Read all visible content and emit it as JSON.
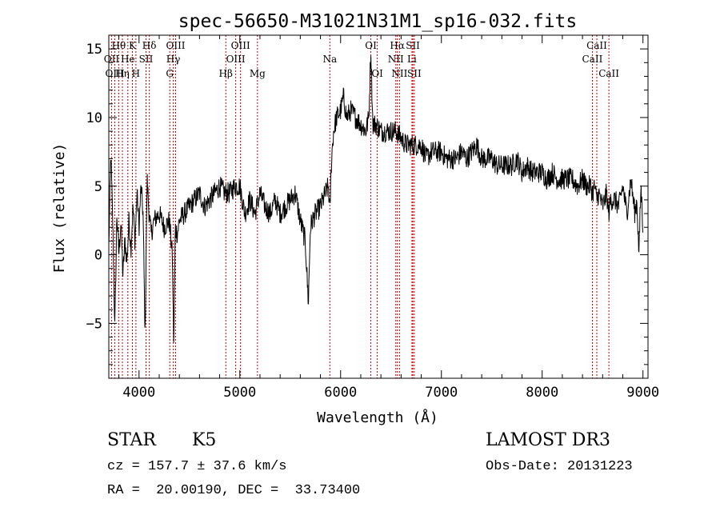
{
  "chart_data": {
    "type": "line",
    "title": "spec-56650-M31021N31M1_sp16-032.fits",
    "xlabel": "Wavelength (Å)",
    "ylabel": "Flux (relative)",
    "xlim": [
      3700,
      9050
    ],
    "ylim": [
      -9,
      16
    ],
    "x_ticks": [
      4000,
      5000,
      6000,
      7000,
      8000,
      9000
    ],
    "y_ticks": [
      -5,
      0,
      5,
      10,
      15
    ],
    "grid": false,
    "line_color": "#000000",
    "marker_color": "#cc0000",
    "spectral_lines": [
      {
        "name": "Hθ",
        "wavelength": 3798,
        "row": 0
      },
      {
        "name": "OII",
        "wavelength": 3727,
        "row": 1
      },
      {
        "name": "OIII",
        "wavelength": 3760,
        "row": 2
      },
      {
        "name": "He",
        "wavelength": 3889,
        "row": 1
      },
      {
        "name": "Hη",
        "wavelength": 3835,
        "row": 2
      },
      {
        "name": "K",
        "wavelength": 3934,
        "row": 0
      },
      {
        "name": "SII",
        "wavelength": 4069,
        "row": 1
      },
      {
        "name": "H",
        "wavelength": 3969,
        "row": 2
      },
      {
        "name": "Hδ",
        "wavelength": 4102,
        "row": 0
      },
      {
        "name": "OIII",
        "wavelength": 4363,
        "row": 0
      },
      {
        "name": "Hγ",
        "wavelength": 4340,
        "row": 1
      },
      {
        "name": "G",
        "wavelength": 4305,
        "row": 2
      },
      {
        "name": "OIII",
        "wavelength": 5007,
        "row": 0
      },
      {
        "name": "OIII",
        "wavelength": 4959,
        "row": 1
      },
      {
        "name": "Hβ",
        "wavelength": 4861,
        "row": 2
      },
      {
        "name": "Mg",
        "wavelength": 5175,
        "row": 2
      },
      {
        "name": "Na",
        "wavelength": 5893,
        "row": 1
      },
      {
        "name": "OI",
        "wavelength": 6300,
        "row": 0
      },
      {
        "name": "OI",
        "wavelength": 6364,
        "row": 2
      },
      {
        "name": "Hα",
        "wavelength": 6563,
        "row": 0
      },
      {
        "name": "SII",
        "wavelength": 6717,
        "row": 0
      },
      {
        "name": "NII",
        "wavelength": 6548,
        "row": 1
      },
      {
        "name": "Li",
        "wavelength": 6708,
        "row": 1
      },
      {
        "name": "NII",
        "wavelength": 6584,
        "row": 2
      },
      {
        "name": "SII",
        "wavelength": 6731,
        "row": 2
      },
      {
        "name": "CaII",
        "wavelength": 8542,
        "row": 0
      },
      {
        "name": "CaII",
        "wavelength": 8498,
        "row": 1
      },
      {
        "name": "CaII",
        "wavelength": 8662,
        "row": 2
      }
    ],
    "series": [
      {
        "name": "flux",
        "x": [
          3700,
          3720,
          3740,
          3760,
          3780,
          3800,
          3820,
          3840,
          3860,
          3880,
          3900,
          3920,
          3940,
          3960,
          3980,
          4000,
          4020,
          4040,
          4060,
          4080,
          4100,
          4120,
          4150,
          4200,
          4250,
          4300,
          4330,
          4345,
          4360,
          4380,
          4400,
          4450,
          4500,
          4550,
          4600,
          4650,
          4700,
          4750,
          4800,
          4850,
          4900,
          4950,
          5000,
          5050,
          5100,
          5150,
          5200,
          5250,
          5300,
          5350,
          5400,
          5450,
          5500,
          5550,
          5600,
          5650,
          5680,
          5700,
          5720,
          5750,
          5800,
          5850,
          5880,
          5893,
          5910,
          5930,
          5960,
          6000,
          6030,
          6060,
          6100,
          6150,
          6200,
          6250,
          6280,
          6300,
          6320,
          6350,
          6400,
          6450,
          6500,
          6550,
          6600,
          6650,
          6700,
          6750,
          6800,
          6850,
          6900,
          6950,
          7000,
          7050,
          7100,
          7150,
          7200,
          7250,
          7300,
          7350,
          7400,
          7450,
          7500,
          7550,
          7600,
          7650,
          7700,
          7750,
          7800,
          7850,
          7900,
          7950,
          8000,
          8050,
          8100,
          8150,
          8200,
          8250,
          8300,
          8350,
          8400,
          8440,
          8480,
          8500,
          8520,
          8540,
          8560,
          8600,
          8640,
          8660,
          8680,
          8720,
          8760,
          8800,
          8840,
          8880,
          8920,
          8940,
          8960,
          8980,
          9000
        ],
        "values": [
          0.5,
          7.5,
          2.0,
          -5.5,
          3.0,
          0.0,
          2.5,
          -1.5,
          1.0,
          -0.5,
          2.5,
          0.5,
          3.5,
          1.0,
          4.5,
          2.0,
          5.0,
          3.0,
          -6.0,
          5.5,
          3.0,
          1.5,
          2.5,
          3.0,
          2.0,
          2.5,
          0.0,
          -6.5,
          2.0,
          1.5,
          2.5,
          3.0,
          3.5,
          4.0,
          4.5,
          3.5,
          4.0,
          4.5,
          5.0,
          4.5,
          4.5,
          5.0,
          5.0,
          3.0,
          4.0,
          3.0,
          4.5,
          3.5,
          3.0,
          4.0,
          3.0,
          3.5,
          4.0,
          4.5,
          2.5,
          1.0,
          -3.5,
          2.0,
          2.5,
          3.0,
          3.5,
          4.5,
          5.0,
          3.0,
          7.0,
          9.0,
          10.0,
          10.5,
          11.5,
          10.0,
          10.5,
          10.0,
          9.5,
          9.0,
          10.0,
          15.0,
          9.5,
          9.5,
          9.0,
          9.0,
          9.0,
          9.0,
          8.5,
          8.0,
          8.0,
          8.0,
          8.0,
          7.0,
          7.5,
          7.5,
          7.5,
          7.0,
          7.0,
          7.0,
          7.5,
          7.0,
          7.5,
          8.0,
          7.0,
          7.0,
          7.0,
          6.5,
          6.5,
          6.5,
          6.5,
          7.0,
          6.0,
          6.5,
          6.0,
          6.0,
          6.0,
          5.5,
          6.0,
          5.5,
          5.5,
          5.5,
          5.5,
          5.0,
          5.5,
          5.0,
          5.0,
          4.5,
          5.0,
          4.0,
          4.5,
          3.5,
          4.5,
          3.0,
          4.0,
          4.0,
          3.5,
          5.0,
          3.0,
          5.5,
          3.0,
          4.0,
          0.0,
          5.0,
          2.0
        ]
      }
    ]
  },
  "info": {
    "object_class": "STAR",
    "subclass": "K5",
    "survey": "LAMOST DR3",
    "redshift": "cz = 157.7 ± 37.6 km/s",
    "obs_date": "Obs-Date: 20131223",
    "coords": "RA =  20.00190, DEC =  33.73400"
  }
}
